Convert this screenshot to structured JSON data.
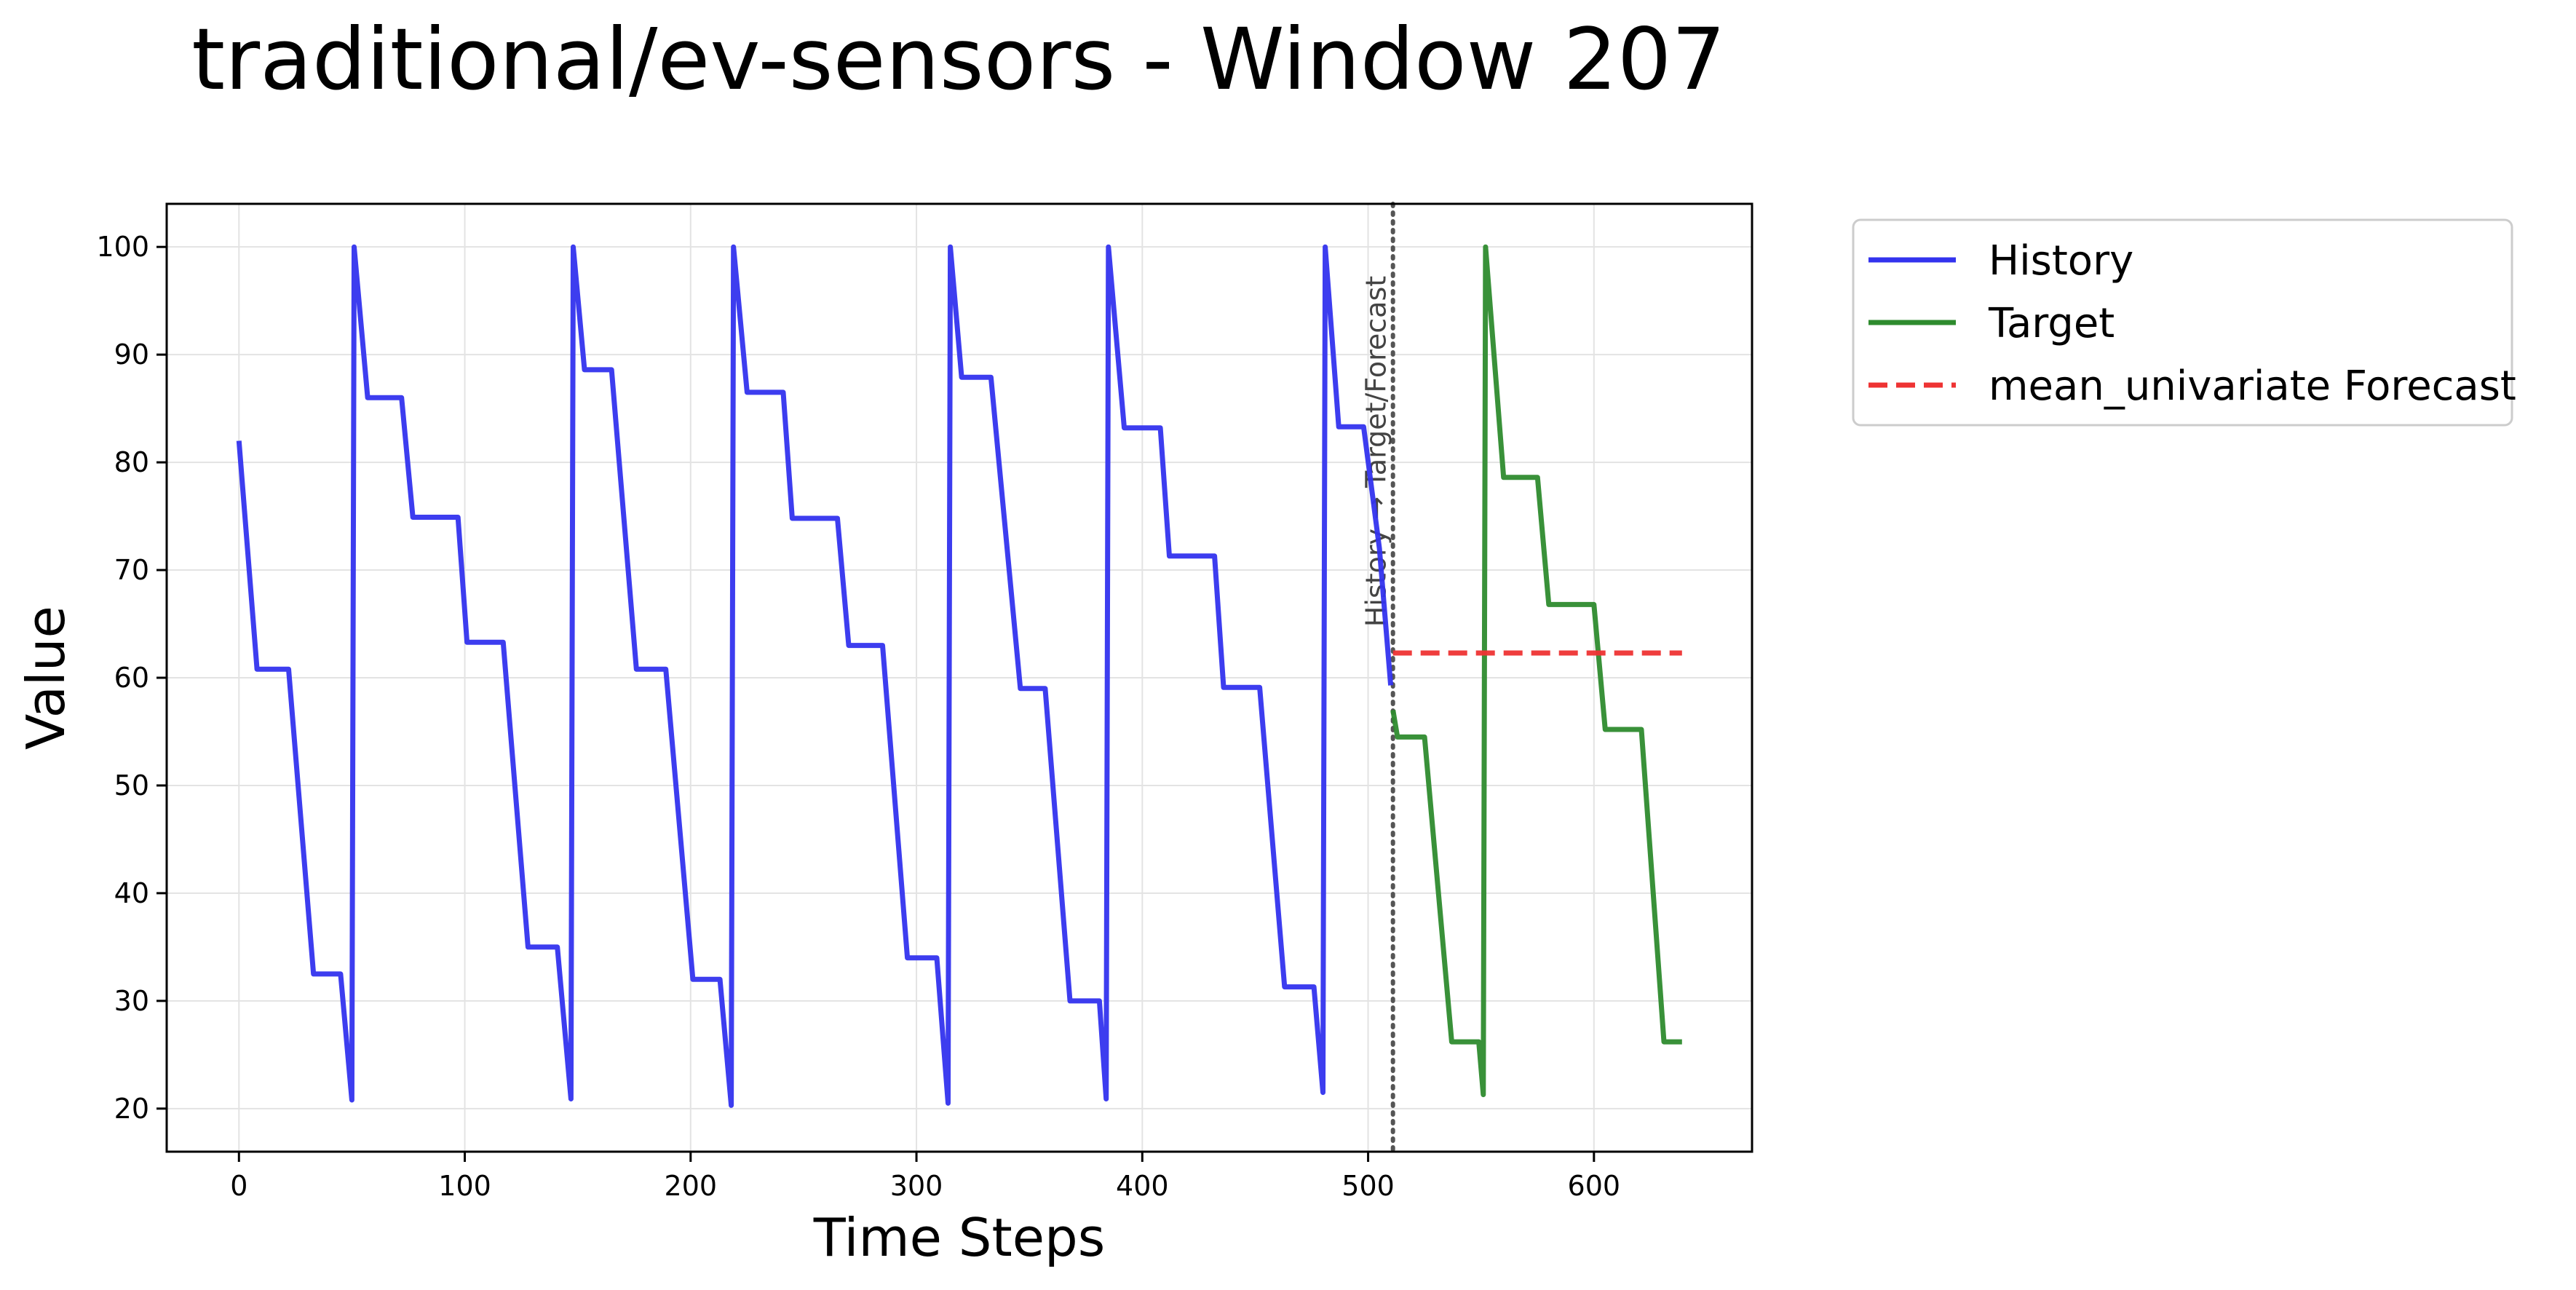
{
  "chart_data": {
    "type": "line",
    "title": "traditional/ev-sensors - Window 207",
    "xlabel": "Time Steps",
    "ylabel": "Value",
    "xlim": [
      -32,
      670
    ],
    "ylim": [
      16,
      104
    ],
    "xticks": [
      0,
      100,
      200,
      300,
      400,
      500,
      600
    ],
    "yticks": [
      20,
      30,
      40,
      50,
      60,
      70,
      80,
      90,
      100
    ],
    "grid": true,
    "legend_position": "outside-top-right",
    "divider": {
      "x": 511,
      "label": "History → Target/Forecast",
      "color": "#555555"
    },
    "series": [
      {
        "name": "History",
        "color": "#3333ee",
        "style": "solid",
        "points": [
          [
            0,
            82
          ],
          [
            8,
            60.8
          ],
          [
            22,
            60.8
          ],
          [
            33,
            32.5
          ],
          [
            45,
            32.5
          ],
          [
            50,
            20.8
          ],
          [
            51,
            100
          ],
          [
            57,
            86
          ],
          [
            72,
            86
          ],
          [
            77,
            74.9
          ],
          [
            97,
            74.9
          ],
          [
            101,
            63.3
          ],
          [
            117,
            63.3
          ],
          [
            128,
            35
          ],
          [
            141,
            35
          ],
          [
            147,
            20.9
          ],
          [
            148,
            100
          ],
          [
            153,
            88.6
          ],
          [
            165,
            88.6
          ],
          [
            176,
            60.8
          ],
          [
            189,
            60.8
          ],
          [
            201,
            32
          ],
          [
            213,
            32
          ],
          [
            218,
            20.3
          ],
          [
            219,
            100
          ],
          [
            225,
            86.5
          ],
          [
            241,
            86.5
          ],
          [
            245,
            74.8
          ],
          [
            265,
            74.8
          ],
          [
            270,
            63
          ],
          [
            285,
            63
          ],
          [
            296,
            34
          ],
          [
            309,
            34
          ],
          [
            314,
            20.5
          ],
          [
            315,
            100
          ],
          [
            320,
            87.9
          ],
          [
            333,
            87.9
          ],
          [
            346,
            59
          ],
          [
            357,
            59
          ],
          [
            368,
            30
          ],
          [
            381,
            30
          ],
          [
            384,
            20.9
          ],
          [
            385,
            100
          ],
          [
            392,
            83.2
          ],
          [
            408,
            83.2
          ],
          [
            412,
            71.3
          ],
          [
            432,
            71.3
          ],
          [
            436,
            59.1
          ],
          [
            452,
            59.1
          ],
          [
            463,
            31.3
          ],
          [
            476,
            31.3
          ],
          [
            480,
            21.5
          ],
          [
            481,
            100
          ],
          [
            487,
            83.3
          ],
          [
            498,
            83.3
          ],
          [
            505,
            72
          ],
          [
            510,
            59.3
          ]
        ]
      },
      {
        "name": "Target",
        "color": "#2e8b2e",
        "style": "solid",
        "points": [
          [
            511,
            57
          ],
          [
            513,
            54.5
          ],
          [
            525,
            54.5
          ],
          [
            537,
            26.2
          ],
          [
            549,
            26.2
          ],
          [
            551,
            21.3
          ],
          [
            552,
            100
          ],
          [
            560,
            78.6
          ],
          [
            575,
            78.6
          ],
          [
            580,
            66.8
          ],
          [
            600,
            66.8
          ],
          [
            605,
            55.2
          ],
          [
            621,
            55.2
          ],
          [
            631,
            26.2
          ],
          [
            639,
            26.2
          ]
        ]
      },
      {
        "name": "mean_univariate Forecast",
        "color": "#ee3333",
        "style": "dashed",
        "points": [
          [
            511,
            62.3
          ],
          [
            639,
            62.3
          ]
        ]
      }
    ]
  }
}
